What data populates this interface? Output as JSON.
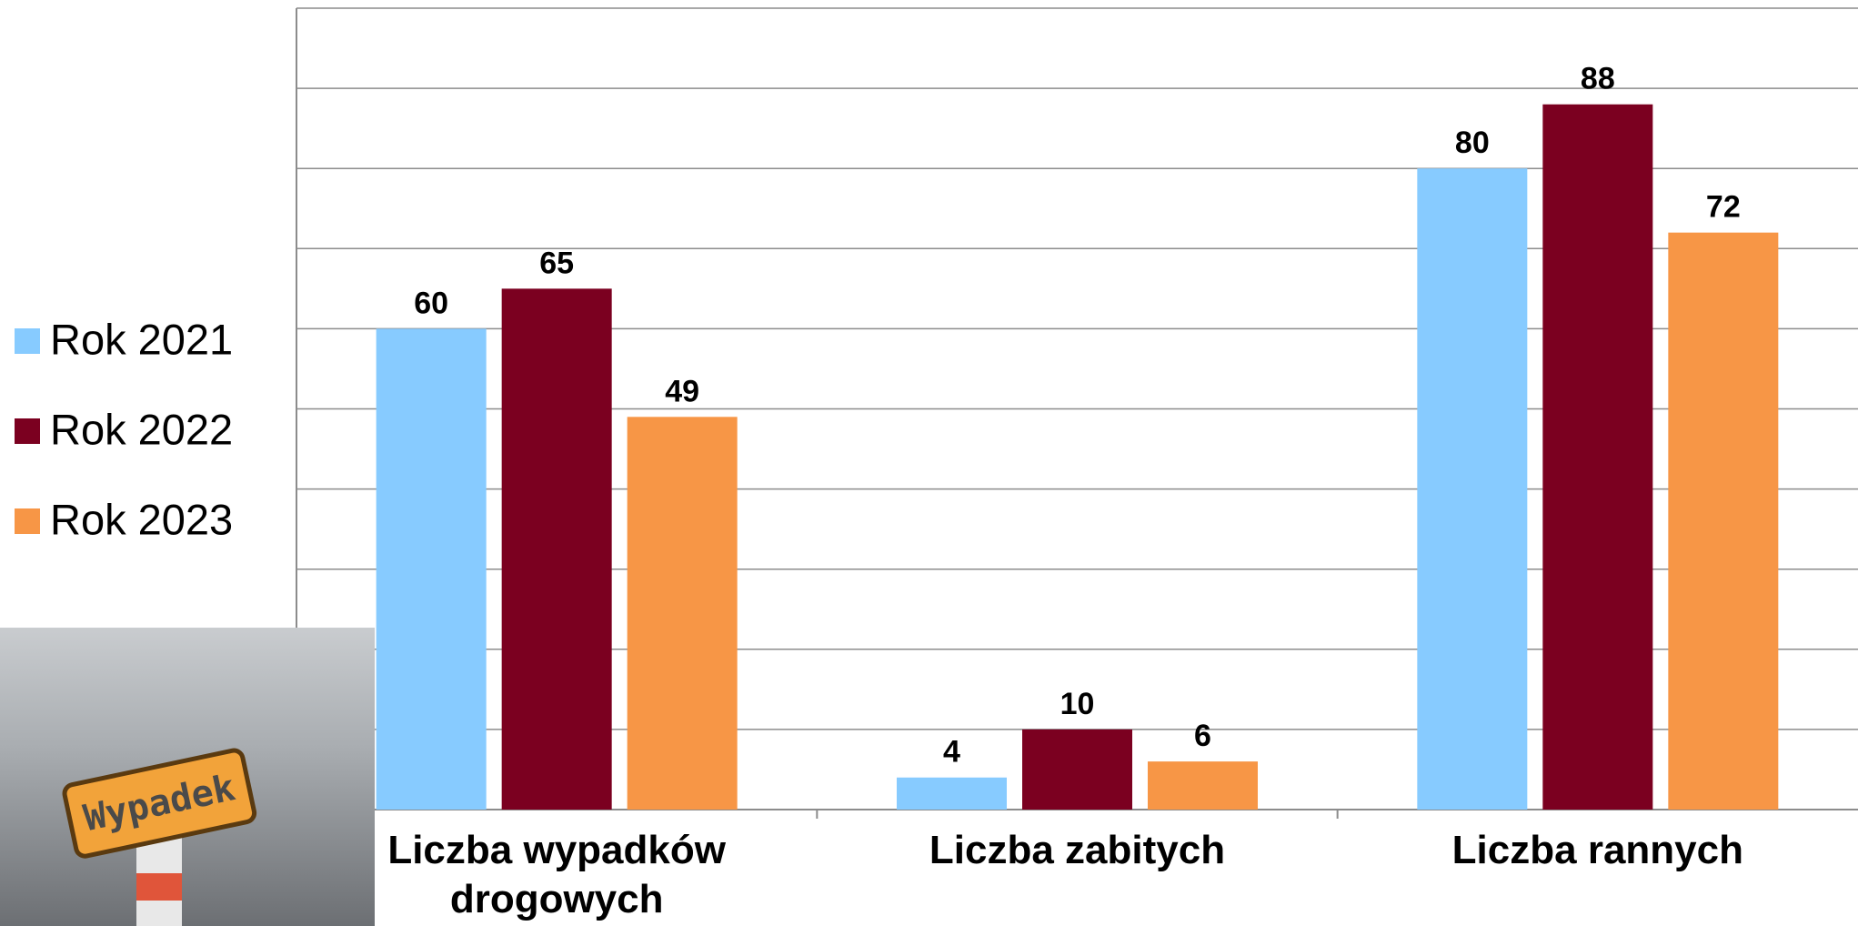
{
  "chart_data": {
    "type": "bar",
    "categories": [
      "Liczba wypadków drogowych",
      "Liczba zabitych",
      "Liczba rannych"
    ],
    "series": [
      {
        "name": "Rok 2021",
        "color": "#87cbff",
        "values": [
          60,
          4,
          80
        ]
      },
      {
        "name": "Rok 2022",
        "color": "#7b0020",
        "values": [
          65,
          10,
          88
        ]
      },
      {
        "name": "Rok 2023",
        "color": "#f79646",
        "values": [
          49,
          6,
          72
        ]
      }
    ],
    "ylim": [
      0,
      100
    ],
    "yticks": [
      0,
      10,
      20,
      30,
      40,
      50,
      60,
      70,
      80,
      90,
      100
    ],
    "grid": true,
    "legend": "left"
  },
  "image": {
    "sign": "Wypadek"
  }
}
